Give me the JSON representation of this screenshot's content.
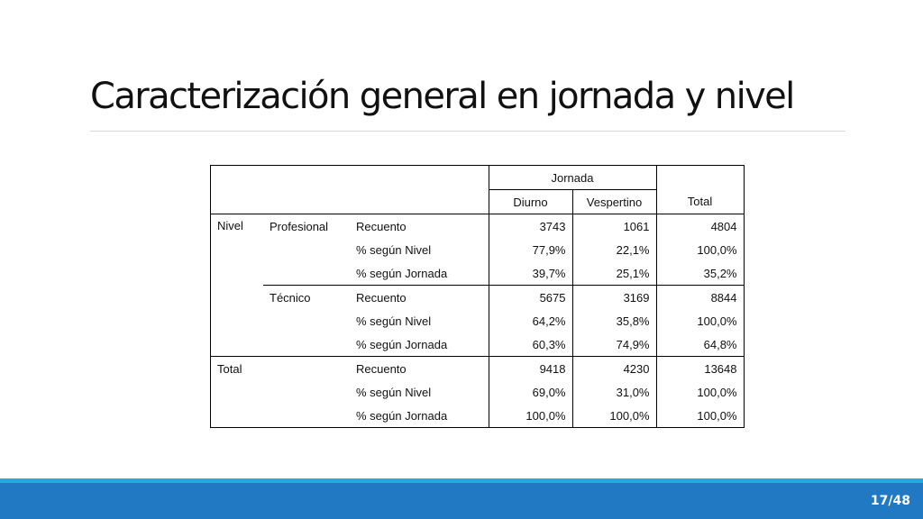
{
  "slide": {
    "title": "Caracterización general en jornada y nivel",
    "page_number": "17/48"
  },
  "table": {
    "group_header": "Jornada",
    "columns": [
      "Diurno",
      "Vespertino",
      "Total"
    ],
    "row_header": "Nivel",
    "groups": [
      {
        "label": "Profesional",
        "rows": [
          {
            "stat": "Recuento",
            "values": [
              "3743",
              "1061",
              "4804"
            ]
          },
          {
            "stat": "% según Nivel",
            "values": [
              "77,9%",
              "22,1%",
              "100,0%"
            ]
          },
          {
            "stat": "% según Jornada",
            "values": [
              "39,7%",
              "25,1%",
              "35,2%"
            ]
          }
        ]
      },
      {
        "label": "Técnico",
        "rows": [
          {
            "stat": "Recuento",
            "values": [
              "5675",
              "3169",
              "8844"
            ]
          },
          {
            "stat": "% según Nivel",
            "values": [
              "64,2%",
              "35,8%",
              "100,0%"
            ]
          },
          {
            "stat": "% según Jornada",
            "values": [
              "60,3%",
              "74,9%",
              "64,8%"
            ]
          }
        ]
      }
    ],
    "total": {
      "label": "Total",
      "rows": [
        {
          "stat": "Recuento",
          "values": [
            "9418",
            "4230",
            "13648"
          ]
        },
        {
          "stat": "% según Nivel",
          "values": [
            "69,0%",
            "31,0%",
            "100,0%"
          ]
        },
        {
          "stat": "% según Jornada",
          "values": [
            "100,0%",
            "100,0%",
            "100,0%"
          ]
        }
      ]
    }
  },
  "colors": {
    "footer_bar": "#2179c4",
    "footer_accent": "#29a8e0",
    "title_text": "#111111"
  }
}
